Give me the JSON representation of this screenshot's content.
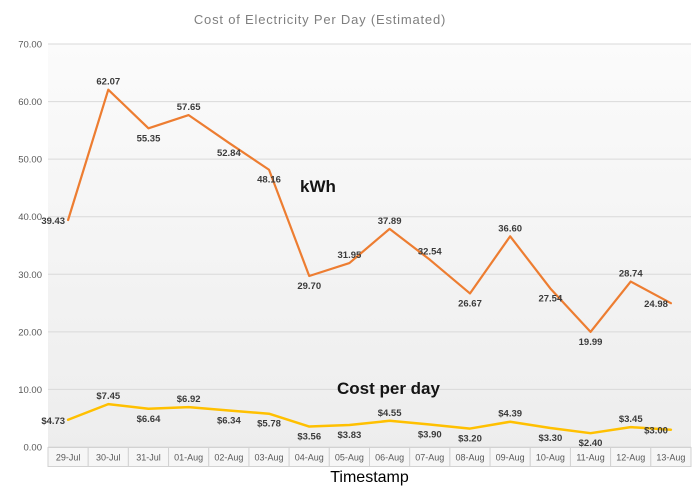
{
  "chart_data": {
    "type": "line",
    "title": "Cost of Electricity Per Day (Estimated)",
    "xlabel": "Timestamp",
    "ylabel": "",
    "ylim": [
      0,
      70
    ],
    "ytick_step": 10,
    "ytick_labels": [
      "0.00",
      "10.00",
      "20.00",
      "30.00",
      "40.00",
      "50.00",
      "60.00",
      "70.00"
    ],
    "grid": true,
    "legend_position": "none (inline series annotations)",
    "categories": [
      "29-Jul",
      "30-Jul",
      "31-Jul",
      "01-Aug",
      "02-Aug",
      "03-Aug",
      "04-Aug",
      "05-Aug",
      "06-Aug",
      "07-Aug",
      "08-Aug",
      "09-Aug",
      "10-Aug",
      "11-Aug",
      "12-Aug",
      "13-Aug"
    ],
    "series": [
      {
        "name": "kWh",
        "color": "#ED7D31",
        "values": [
          39.43,
          62.07,
          55.35,
          57.65,
          52.84,
          48.16,
          29.7,
          31.95,
          37.89,
          32.54,
          26.67,
          36.6,
          27.54,
          19.99,
          28.74,
          24.98
        ],
        "labels": [
          "39.43",
          "62.07",
          "55.35",
          "57.65",
          "52.84",
          "48.16",
          "29.70",
          "31.95",
          "37.89",
          "32.54",
          "26.67",
          "36.60",
          "27.54",
          "19.99",
          "28.74",
          "24.98"
        ],
        "label_side": [
          "left",
          "above",
          "below",
          "above",
          "below",
          "below",
          "below",
          "above",
          "above",
          "above",
          "below",
          "above",
          "below",
          "below",
          "above",
          "left"
        ]
      },
      {
        "name": "Cost per day",
        "color": "#FFC000",
        "values": [
          4.73,
          7.45,
          6.64,
          6.92,
          6.34,
          5.78,
          3.56,
          3.83,
          4.55,
          3.9,
          3.2,
          4.39,
          3.3,
          2.4,
          3.45,
          3.0
        ],
        "labels": [
          "$4.73",
          "$7.45",
          "$6.64",
          "$6.92",
          "$6.34",
          "$5.78",
          "$3.56",
          "$3.83",
          "$4.55",
          "$3.90",
          "$3.20",
          "$4.39",
          "$3.30",
          "$2.40",
          "$3.45",
          "$3.00"
        ],
        "label_side": [
          "left",
          "above",
          "below",
          "above",
          "below",
          "below",
          "below",
          "below",
          "above",
          "below",
          "below",
          "above",
          "below",
          "below",
          "above",
          "left"
        ]
      }
    ],
    "colors": {
      "gridline": "#dadada",
      "plot_fill_top": "#fbfbfb",
      "plot_fill_bottom": "#ededed",
      "axis_text": "#595959",
      "data_label_text": "#3b3b3b",
      "cell_border": "#d2d2d2",
      "cell_fill": "#f6f6f6",
      "title_text": "#7f7f7f"
    }
  }
}
